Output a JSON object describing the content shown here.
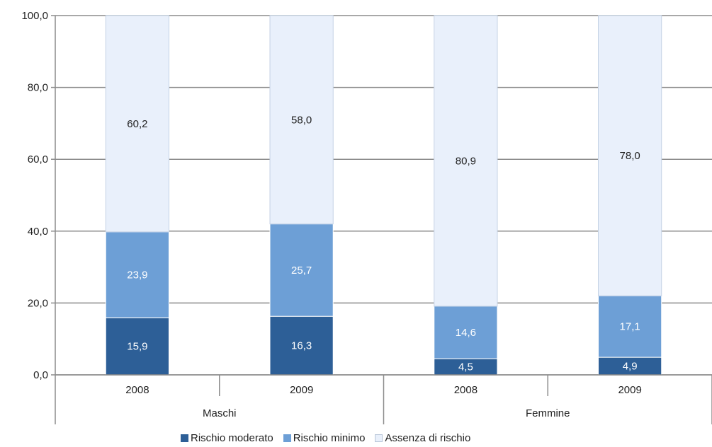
{
  "chart_data": {
    "type": "bar",
    "stacked": true,
    "title": "",
    "xlabel": "",
    "ylabel": "",
    "ylim": [
      0,
      100
    ],
    "yticks": [
      "0,0",
      "20,0",
      "40,0",
      "60,0",
      "80,0",
      "100,0"
    ],
    "ytick_values": [
      0,
      20,
      40,
      60,
      80,
      100
    ],
    "grid": true,
    "legend_position": "bottom",
    "groups": [
      {
        "label": "Maschi",
        "categories": [
          "2008",
          "2009"
        ]
      },
      {
        "label": "Femmine",
        "categories": [
          "2008",
          "2009"
        ]
      }
    ],
    "categories": [
      "2008",
      "2009",
      "2008",
      "2009"
    ],
    "series": [
      {
        "name": "Rischio moderato",
        "values": [
          15.9,
          16.3,
          4.5,
          4.9
        ],
        "labels": [
          "15,9",
          "16,3",
          "4,5",
          "4,9"
        ],
        "color": "#2d5f97"
      },
      {
        "name": "Rischio minimo",
        "values": [
          23.9,
          25.7,
          14.6,
          17.1
        ],
        "labels": [
          "23,9",
          "25,7",
          "14,6",
          "17,1"
        ],
        "color": "#6d9fd6"
      },
      {
        "name": "Assenza di rischio",
        "values": [
          60.2,
          58.0,
          80.9,
          78.0
        ],
        "labels": [
          "60,2",
          "58,0",
          "80,9",
          "78,0"
        ],
        "color": "#e9f0fb"
      }
    ]
  }
}
